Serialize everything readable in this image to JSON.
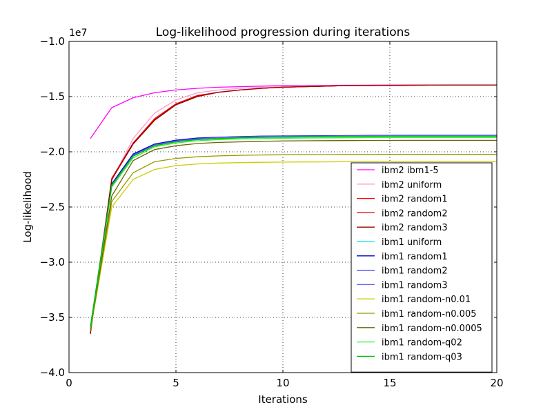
{
  "chart_data": {
    "type": "line",
    "title": "Log-likelihood progression during iterations",
    "xlabel": "Iterations",
    "ylabel": "Log-likelihood",
    "y_offset_label": "1e7",
    "xlim": [
      0,
      20
    ],
    "ylim": [
      -4.0,
      -1.0
    ],
    "grid": true,
    "legend_position": "lower-right",
    "x_ticks": [
      {
        "value": 0,
        "label": "0"
      },
      {
        "value": 5,
        "label": "5"
      },
      {
        "value": 10,
        "label": "10"
      },
      {
        "value": 15,
        "label": "15"
      },
      {
        "value": 20,
        "label": "20"
      }
    ],
    "y_ticks": [
      {
        "value": -4.0,
        "label": "−4.0"
      },
      {
        "value": -3.5,
        "label": "−3.5"
      },
      {
        "value": -3.0,
        "label": "−3.0"
      },
      {
        "value": -2.5,
        "label": "−2.5"
      },
      {
        "value": -2.0,
        "label": "−2.0"
      },
      {
        "value": -1.5,
        "label": "−1.5"
      },
      {
        "value": -1.0,
        "label": "−1.0"
      }
    ],
    "x": [
      1,
      2,
      3,
      4,
      5,
      6,
      7,
      8,
      9,
      10,
      11,
      12,
      13,
      14,
      15,
      16,
      17,
      18,
      19,
      20
    ],
    "series": [
      {
        "name": "ibm2 ibm1-5",
        "color": "#ff00ff",
        "values": [
          -1.88,
          -1.6,
          -1.51,
          -1.465,
          -1.44,
          -1.425,
          -1.415,
          -1.41,
          -1.405,
          -1.4,
          -1.4,
          -1.398,
          -1.397,
          -1.396,
          -1.395,
          -1.395,
          -1.395,
          -1.395,
          -1.395,
          -1.395
        ]
      },
      {
        "name": "ibm2 uniform",
        "color": "#ff99cc",
        "values": [
          -3.6,
          -2.26,
          -1.88,
          -1.65,
          -1.53,
          -1.465,
          -1.44,
          -1.425,
          -1.415,
          -1.41,
          -1.405,
          -1.4,
          -1.4,
          -1.398,
          -1.397,
          -1.396,
          -1.395,
          -1.395,
          -1.395,
          -1.395
        ]
      },
      {
        "name": "ibm2 random1",
        "color": "#ff0000",
        "values": [
          -3.64,
          -2.24,
          -1.92,
          -1.7,
          -1.565,
          -1.49,
          -1.46,
          -1.44,
          -1.425,
          -1.415,
          -1.41,
          -1.405,
          -1.4,
          -1.4,
          -1.398,
          -1.397,
          -1.396,
          -1.395,
          -1.395,
          -1.395
        ]
      },
      {
        "name": "ibm2 random2",
        "color": "#cc0000",
        "values": [
          -3.64,
          -2.25,
          -1.92,
          -1.71,
          -1.57,
          -1.495,
          -1.46,
          -1.44,
          -1.425,
          -1.415,
          -1.41,
          -1.405,
          -1.4,
          -1.4,
          -1.398,
          -1.397,
          -1.396,
          -1.395,
          -1.395,
          -1.395
        ]
      },
      {
        "name": "ibm2 random3",
        "color": "#990000",
        "values": [
          -3.65,
          -2.25,
          -1.93,
          -1.715,
          -1.575,
          -1.5,
          -1.46,
          -1.44,
          -1.425,
          -1.415,
          -1.41,
          -1.405,
          -1.4,
          -1.4,
          -1.398,
          -1.397,
          -1.396,
          -1.395,
          -1.395,
          -1.395
        ]
      },
      {
        "name": "ibm1 uniform",
        "color": "#00e5e5",
        "values": [
          -3.58,
          -2.3,
          -2.04,
          -1.94,
          -1.905,
          -1.89,
          -1.88,
          -1.875,
          -1.87,
          -1.868,
          -1.866,
          -1.864,
          -1.862,
          -1.861,
          -1.86,
          -1.86,
          -1.86,
          -1.86,
          -1.86,
          -1.86
        ]
      },
      {
        "name": "ibm1 random1",
        "color": "#0000cc",
        "values": [
          -3.6,
          -2.29,
          -2.02,
          -1.93,
          -1.895,
          -1.875,
          -1.868,
          -1.862,
          -1.858,
          -1.856,
          -1.855,
          -1.854,
          -1.853,
          -1.852,
          -1.852,
          -1.851,
          -1.851,
          -1.851,
          -1.851,
          -1.851
        ]
      },
      {
        "name": "ibm1 random2",
        "color": "#3333ff",
        "values": [
          -3.6,
          -2.3,
          -2.03,
          -1.935,
          -1.9,
          -1.88,
          -1.87,
          -1.864,
          -1.86,
          -1.858,
          -1.857,
          -1.856,
          -1.855,
          -1.854,
          -1.853,
          -1.853,
          -1.853,
          -1.853,
          -1.853,
          -1.853
        ]
      },
      {
        "name": "ibm1 random3",
        "color": "#6666ff",
        "values": [
          -3.6,
          -2.31,
          -2.035,
          -1.94,
          -1.905,
          -1.885,
          -1.872,
          -1.866,
          -1.862,
          -1.86,
          -1.858,
          -1.857,
          -1.856,
          -1.855,
          -1.855,
          -1.855,
          -1.855,
          -1.855,
          -1.855,
          -1.855
        ]
      },
      {
        "name": "ibm1 random-n0.01",
        "color": "#cccc00",
        "values": [
          -3.62,
          -2.5,
          -2.25,
          -2.16,
          -2.125,
          -2.11,
          -2.102,
          -2.098,
          -2.095,
          -2.093,
          -2.092,
          -2.091,
          -2.09,
          -2.09,
          -2.09,
          -2.09,
          -2.09,
          -2.09,
          -2.09,
          -2.09
        ]
      },
      {
        "name": "ibm1 random-n0.005",
        "color": "#999900",
        "values": [
          -3.62,
          -2.45,
          -2.19,
          -2.09,
          -2.06,
          -2.045,
          -2.037,
          -2.032,
          -2.029,
          -2.027,
          -2.026,
          -2.025,
          -2.024,
          -2.024,
          -2.023,
          -2.023,
          -2.023,
          -2.023,
          -2.023,
          -2.023
        ]
      },
      {
        "name": "ibm1 random-n0.0005",
        "color": "#666600",
        "values": [
          -3.61,
          -2.4,
          -2.08,
          -1.98,
          -1.945,
          -1.925,
          -1.915,
          -1.91,
          -1.905,
          -1.902,
          -1.9,
          -1.899,
          -1.898,
          -1.897,
          -1.897,
          -1.896,
          -1.896,
          -1.896,
          -1.896,
          -1.896
        ]
      },
      {
        "name": "ibm1 random-q02",
        "color": "#33ee33",
        "values": [
          -3.6,
          -2.32,
          -2.055,
          -1.955,
          -1.92,
          -1.9,
          -1.89,
          -1.884,
          -1.88,
          -1.877,
          -1.875,
          -1.874,
          -1.873,
          -1.872,
          -1.871,
          -1.871,
          -1.871,
          -1.871,
          -1.871,
          -1.871
        ]
      },
      {
        "name": "ibm1 random-q03",
        "color": "#00bb00",
        "values": [
          -3.59,
          -2.3,
          -2.04,
          -1.945,
          -1.91,
          -1.89,
          -1.88,
          -1.873,
          -1.869,
          -1.866,
          -1.864,
          -1.862,
          -1.861,
          -1.86,
          -1.859,
          -1.859,
          -1.859,
          -1.859,
          -1.859,
          -1.859
        ]
      }
    ]
  }
}
